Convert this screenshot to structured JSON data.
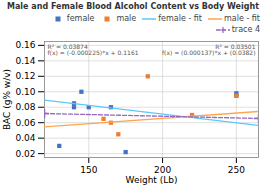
{
  "chart_data": {
    "type": "scatter",
    "title": "Male and Female Blood Alcohol Content vs Body Weight",
    "xlabel": "Weight (Lb)",
    "ylabel": "BAC (g% w/v)",
    "xlim": [
      120,
      265
    ],
    "ylim": [
      0.015,
      0.165
    ],
    "xticks": [
      150,
      200,
      250
    ],
    "yticks": [
      0.02,
      0.04,
      0.06,
      0.08,
      {
        "value": 0.1,
        "label": "0.10"
      },
      0.12,
      0.14,
      0.16
    ],
    "grid": true,
    "legend": "upper right",
    "annotations": [
      "R² = 0.03874",
      "f(x) = (-0.000225)*x + 0.1161",
      "R² = 0.03501",
      "f(x) = (0.000137)*x + (0.0382)"
    ],
    "series": [
      {
        "name": "female",
        "type": "scatter",
        "marker": "square",
        "color": "#4472c4",
        "x": [
          130,
          140,
          140,
          145,
          150,
          165,
          175,
          250,
          250
        ],
        "values": [
          0.03,
          0.085,
          0.08,
          0.1,
          0.08,
          0.08,
          0.022,
          0.098,
          0.095
        ]
      },
      {
        "name": "male",
        "type": "scatter",
        "marker": "square",
        "color": "#ed7d31",
        "x": [
          160,
          165,
          170,
          190,
          220,
          250
        ],
        "values": [
          0.065,
          0.06,
          0.045,
          0.12,
          0.07,
          0.095
        ]
      },
      {
        "name": "female - fit",
        "type": "line",
        "line_style": "solid",
        "color": "#5bc8f5",
        "x": [
          120,
          265
        ],
        "values": [
          0.0891,
          0.056475
        ]
      },
      {
        "name": "male - fit",
        "type": "line",
        "line_style": "solid",
        "color": "#ffa550",
        "x": [
          120,
          265
        ],
        "values": [
          0.05464,
          0.074505
        ]
      },
      {
        "name": "trace 4",
        "type": "line",
        "line_style": "dashed",
        "marker": "plus",
        "color": "#9467bd",
        "x": [
          120,
          265
        ],
        "values": [
          0.07187,
          0.06549
        ]
      }
    ]
  }
}
